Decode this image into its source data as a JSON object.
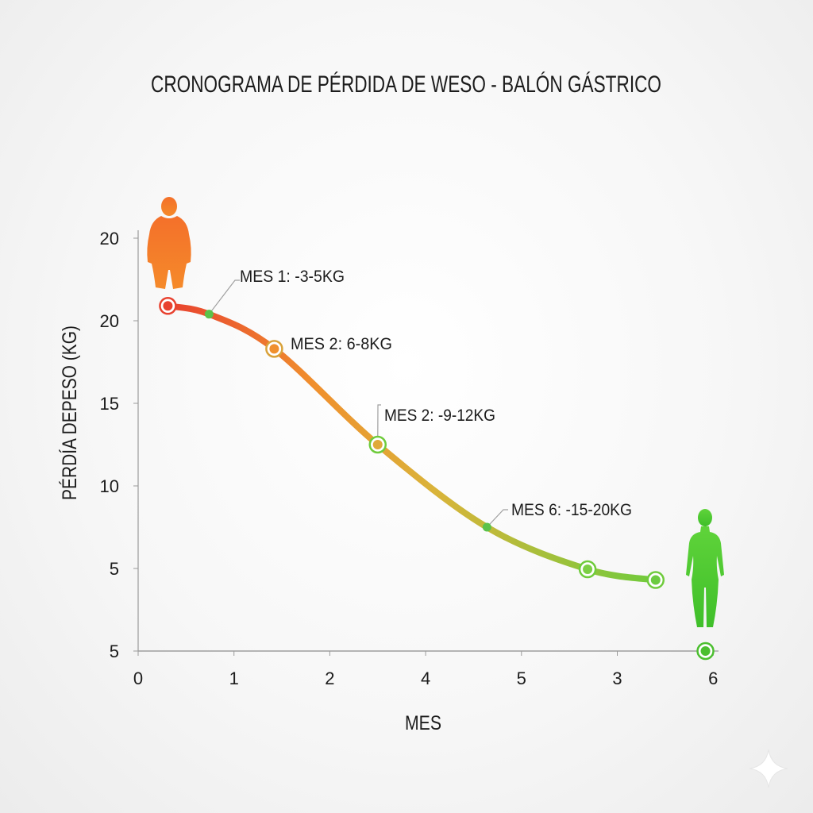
{
  "chart_data": {
    "type": "line",
    "title": "CRONOGRAMA DE PÉRDIDA DE WESO - BALÓN GÁSTRICO",
    "xlabel": "MES",
    "ylabel": "PÉRDÍA DEPESO (KG)",
    "x_tick_labels": [
      "0",
      "1",
      "2",
      "4",
      "5",
      "3",
      "6"
    ],
    "y_tick_labels": [
      "5",
      "5",
      "10",
      "15",
      "20",
      "20"
    ],
    "xlim": [
      0,
      6
    ],
    "ylim": [
      0,
      25
    ],
    "grid": false,
    "series": [
      {
        "x": [
          0.31,
          0.74,
          1.42,
          2.5,
          3.64,
          4.69,
          5.4,
          5.92
        ],
        "y": [
          20.9,
          20.4,
          18.3,
          12.5,
          7.5,
          4.95,
          4.3,
          0
        ],
        "markers": [
          "ring",
          "dot",
          "ring",
          "ring",
          "dot",
          "ring",
          "ring",
          "ring"
        ]
      }
    ],
    "annotations": [
      {
        "text": "MES 1: -3-5KG",
        "point_index": 1
      },
      {
        "text": "MES 2:  6-8KG",
        "point_index": 2
      },
      {
        "text": "MES 2: -9-12KG",
        "point_index": 3
      },
      {
        "text": "MES 6: -15-20KG",
        "point_index": 4
      }
    ],
    "colors": {
      "start": "#e8412f",
      "mid": "#f0902e",
      "mid2": "#d9b43a",
      "end": "#6fcb3c",
      "figure_start": "#f4702a",
      "figure_end": "#4fcf2f"
    },
    "icons": [
      "obese-person-figure-icon",
      "slim-person-figure-icon",
      "sparkle-icon"
    ]
  }
}
